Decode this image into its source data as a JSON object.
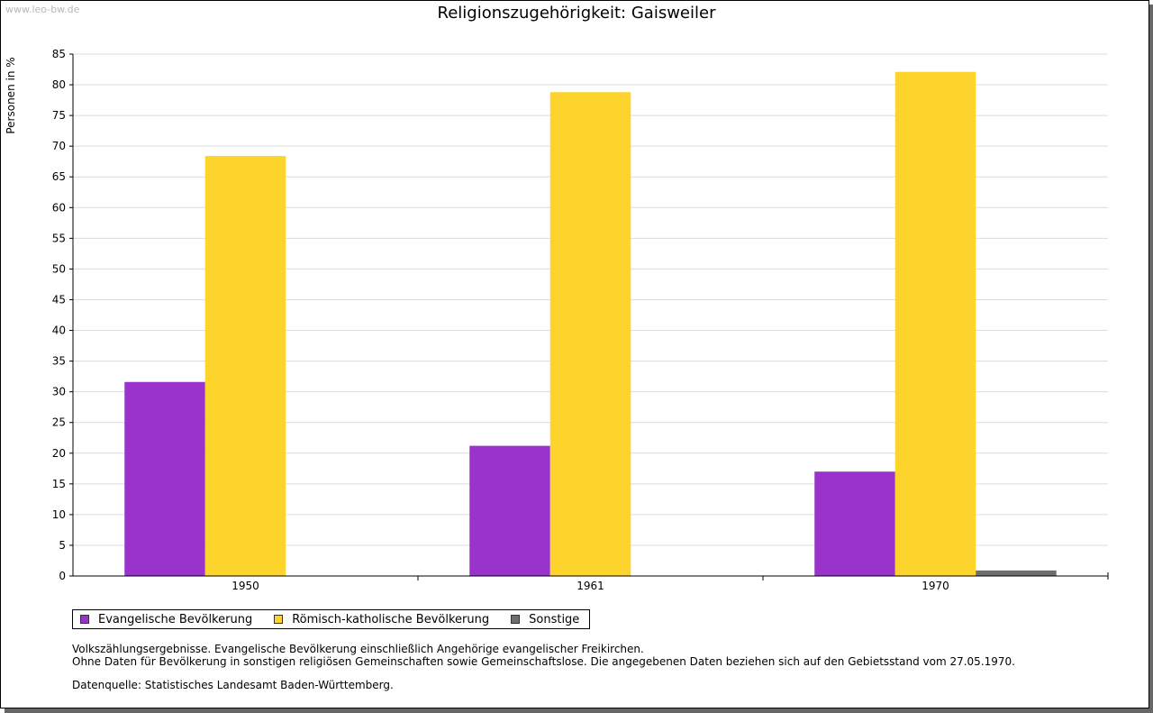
{
  "watermark": "www.leo-bw.de",
  "chart_data": {
    "type": "bar",
    "title": "Religionszugehörigkeit: Gaisweiler",
    "xlabel": "",
    "ylabel": "Personen in %",
    "ylim": [
      0,
      85
    ],
    "yticks": [
      0,
      5,
      10,
      15,
      20,
      25,
      30,
      35,
      40,
      45,
      50,
      55,
      60,
      65,
      70,
      75,
      80,
      85
    ],
    "grid": true,
    "categories": [
      "1950",
      "1961",
      "1970"
    ],
    "series": [
      {
        "name": "Evangelische Bevölkerung",
        "color": "#9933cc",
        "values": [
          31.6,
          21.2,
          17.0
        ]
      },
      {
        "name": "Römisch-katholische Bevölkerung",
        "color": "#fcd42c",
        "values": [
          68.4,
          78.8,
          82.1
        ]
      },
      {
        "name": "Sonstige",
        "color": "#6e6e6e",
        "values": [
          0,
          0,
          0.9
        ]
      }
    ]
  },
  "notes": {
    "line1": "Volkszählungsergebnisse. Evangelische Bevölkerung einschließlich Angehörige evangelischer Freikirchen.",
    "line2": "Ohne Daten für Bevölkerung in sonstigen religiösen Gemeinschaften sowie Gemeinschaftslose. Die angegebenen Daten beziehen sich auf den Gebietsstand vom 27.05.1970.",
    "source": "Datenquelle: Statistisches Landesamt Baden-Württemberg."
  }
}
